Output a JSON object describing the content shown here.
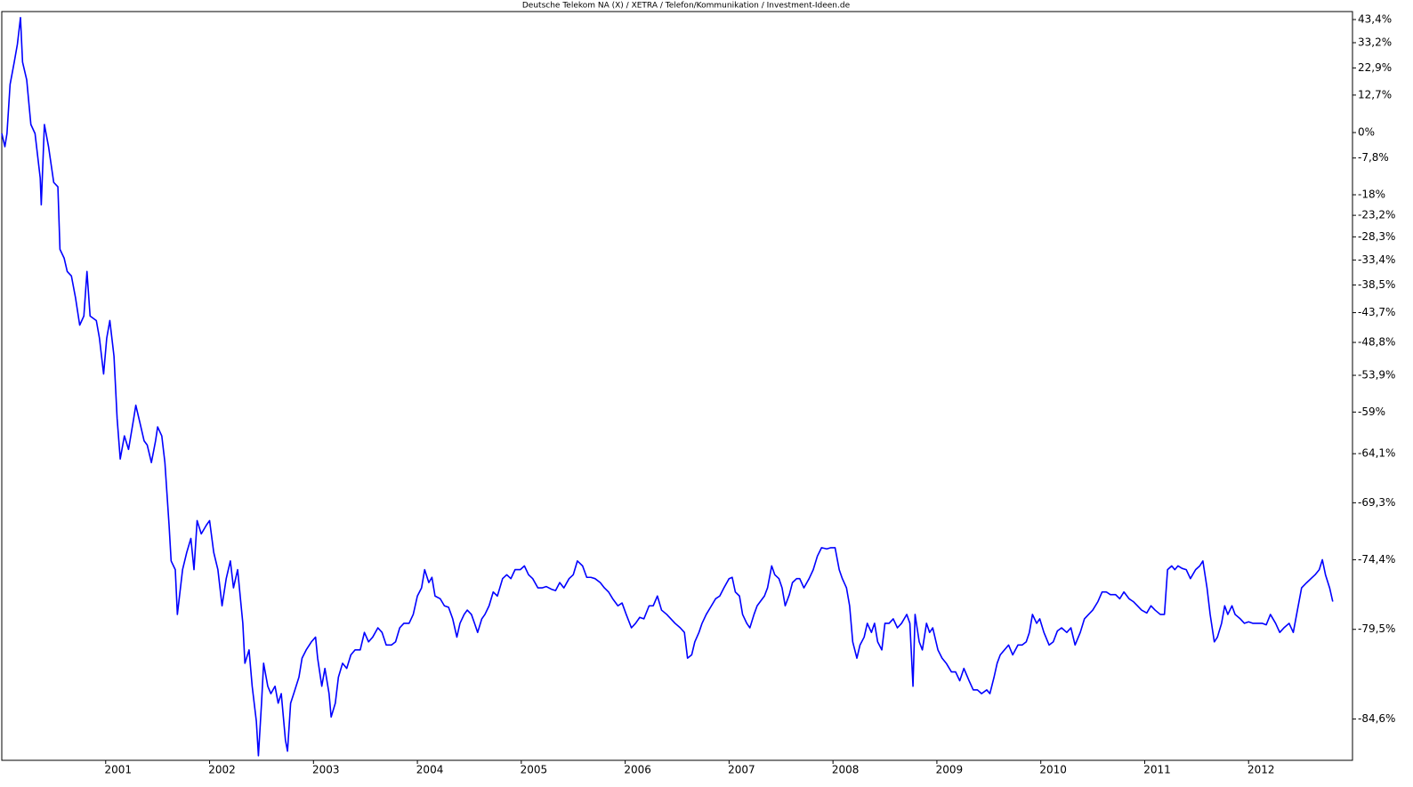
{
  "chart_data": {
    "type": "line",
    "title": "Deutsche Telekom NA (X) / XETRA / Telefon/Kommunikation / Investment-Ideen.de",
    "color": "#0000ff",
    "log_scale": true,
    "grid": false,
    "xlim": [
      2000,
      2013
    ],
    "xticks": [
      2001,
      2002,
      2003,
      2004,
      2005,
      2006,
      2007,
      2008,
      2009,
      2010,
      2011,
      2012
    ],
    "ylim": [
      -86.5,
      47.1
    ],
    "yticks": [
      {
        "value": 43.4,
        "label": "43,4%"
      },
      {
        "value": 33.2,
        "label": "33,2%"
      },
      {
        "value": 22.9,
        "label": "22,9%"
      },
      {
        "value": 12.7,
        "label": "12,7%"
      },
      {
        "value": 0,
        "label": "0%"
      },
      {
        "value": -7.8,
        "label": "-7,8%"
      },
      {
        "value": -18,
        "label": "-18%"
      },
      {
        "value": -23.2,
        "label": "-23,2%"
      },
      {
        "value": -28.3,
        "label": "-28,3%"
      },
      {
        "value": -33.4,
        "label": "-33,4%"
      },
      {
        "value": -38.5,
        "label": "-38,5%"
      },
      {
        "value": -43.7,
        "label": "-43,7%"
      },
      {
        "value": -48.8,
        "label": "-48,8%"
      },
      {
        "value": -53.9,
        "label": "-53,9%"
      },
      {
        "value": -59,
        "label": "-59%"
      },
      {
        "value": -64.1,
        "label": "-64,1%"
      },
      {
        "value": -69.3,
        "label": "-69,3%"
      },
      {
        "value": -74.4,
        "label": "-74,4%"
      },
      {
        "value": -79.5,
        "label": "-79,5%"
      },
      {
        "value": -84.6,
        "label": "-84,6%"
      }
    ],
    "x": [
      2000.0,
      2000.03,
      2000.05,
      2000.08,
      2000.12,
      2000.15,
      2000.18,
      2000.2,
      2000.24,
      2000.28,
      2000.32,
      2000.37,
      2000.38,
      2000.41,
      2000.45,
      2000.5,
      2000.54,
      2000.56,
      2000.6,
      2000.63,
      2000.67,
      2000.71,
      2000.75,
      2000.79,
      2000.82,
      2000.85,
      2000.91,
      2000.94,
      2000.98,
      2001.01,
      2001.04,
      2001.08,
      2001.11,
      2001.14,
      2001.18,
      2001.22,
      2001.27,
      2001.29,
      2001.33,
      2001.37,
      2001.4,
      2001.44,
      2001.48,
      2001.5,
      2001.54,
      2001.57,
      2001.61,
      2001.63,
      2001.67,
      2001.69,
      2001.74,
      2001.78,
      2001.82,
      2001.85,
      2001.88,
      2001.92,
      2001.97,
      2002.0,
      2002.04,
      2002.08,
      2002.12,
      2002.16,
      2002.2,
      2002.23,
      2002.27,
      2002.32,
      2002.34,
      2002.38,
      2002.41,
      2002.45,
      2002.47,
      2002.5,
      2002.52,
      2002.56,
      2002.59,
      2002.63,
      2002.66,
      2002.69,
      2002.73,
      2002.75,
      2002.78,
      2002.81,
      2002.86,
      2002.89,
      2002.93,
      2002.98,
      2003.02,
      2003.04,
      2003.08,
      2003.11,
      2003.15,
      2003.17,
      2003.21,
      2003.24,
      2003.28,
      2003.32,
      2003.36,
      2003.4,
      2003.45,
      2003.49,
      2003.53,
      2003.57,
      2003.62,
      2003.66,
      2003.7,
      2003.75,
      2003.79,
      2003.83,
      2003.87,
      2003.92,
      2003.96,
      2004.0,
      2004.04,
      2004.07,
      2004.11,
      2004.14,
      2004.17,
      2004.22,
      2004.26,
      2004.3,
      2004.34,
      2004.38,
      2004.41,
      2004.45,
      2004.48,
      2004.52,
      2004.55,
      2004.58,
      2004.62,
      2004.65,
      2004.69,
      2004.73,
      2004.77,
      2004.82,
      2004.86,
      2004.9,
      2004.94,
      2004.99,
      2005.03,
      2005.07,
      2005.11,
      2005.16,
      2005.2,
      2005.24,
      2005.29,
      2005.33,
      2005.37,
      2005.41,
      2005.46,
      2005.5,
      2005.54,
      2005.59,
      2005.63,
      2005.67,
      2005.71,
      2005.76,
      2005.8,
      2005.84,
      2005.88,
      2005.93,
      2005.97,
      2006.01,
      2006.06,
      2006.1,
      2006.14,
      2006.18,
      2006.23,
      2006.27,
      2006.31,
      2006.35,
      2006.4,
      2006.44,
      2006.48,
      2006.53,
      2006.57,
      2006.6,
      2006.64,
      2006.67,
      2006.71,
      2006.74,
      2006.78,
      2006.83,
      2006.87,
      2006.91,
      2006.95,
      2007.0,
      2007.03,
      2007.06,
      2007.1,
      2007.13,
      2007.17,
      2007.2,
      2007.24,
      2007.27,
      2007.3,
      2007.34,
      2007.37,
      2007.41,
      2007.44,
      2007.48,
      2007.51,
      2007.54,
      2007.58,
      2007.61,
      2007.65,
      2007.68,
      2007.72,
      2007.77,
      2007.81,
      2007.85,
      2007.89,
      2007.94,
      2007.98,
      2008.02,
      2008.06,
      2008.09,
      2008.13,
      2008.16,
      2008.19,
      2008.23,
      2008.26,
      2008.3,
      2008.33,
      2008.37,
      2008.4,
      2008.43,
      2008.47,
      2008.5,
      2008.54,
      2008.58,
      2008.62,
      2008.66,
      2008.71,
      2008.74,
      2008.77,
      2008.79,
      2008.83,
      2008.86,
      2008.9,
      2008.93,
      2008.96,
      2009.01,
      2009.05,
      2009.09,
      2009.14,
      2009.18,
      2009.22,
      2009.26,
      2009.31,
      2009.35,
      2009.39,
      2009.43,
      2009.48,
      2009.51,
      2009.55,
      2009.58,
      2009.61,
      2009.65,
      2009.69,
      2009.73,
      2009.78,
      2009.82,
      2009.86,
      2009.89,
      2009.92,
      2009.96,
      2009.99,
      2010.03,
      2010.08,
      2010.12,
      2010.16,
      2010.2,
      2010.25,
      2010.29,
      2010.33,
      2010.38,
      2010.42,
      2010.46,
      2010.5,
      2010.55,
      2010.59,
      2010.63,
      2010.67,
      2010.72,
      2010.76,
      2010.8,
      2010.85,
      2010.89,
      2010.93,
      2010.97,
      2011.02,
      2011.06,
      2011.1,
      2011.15,
      2011.19,
      2011.22,
      2011.26,
      2011.29,
      2011.32,
      2011.36,
      2011.4,
      2011.44,
      2011.49,
      2011.53,
      2011.56,
      2011.6,
      2011.63,
      2011.67,
      2011.7,
      2011.74,
      2011.77,
      2011.8,
      2011.84,
      2011.87,
      2011.92,
      2011.96,
      2012.0,
      2012.04,
      2012.09,
      2012.13,
      2012.17,
      2012.21,
      2012.26,
      2012.3,
      2012.34,
      2012.39,
      2012.43,
      2012.47,
      2012.51,
      2012.56,
      2012.6,
      2012.64,
      2012.68,
      2012.71,
      2012.74,
      2012.78,
      2012.81
    ],
    "values": [
      -0.3,
      -4.4,
      -0.3,
      16.6,
      25.2,
      32.5,
      44.3,
      25.2,
      18.3,
      2.6,
      -0.3,
      -13.5,
      -20.6,
      2.6,
      -4.4,
      -14.7,
      -15.9,
      -31.1,
      -33.0,
      -35.8,
      -36.7,
      -41.0,
      -45.9,
      -44.3,
      -35.8,
      -44.3,
      -45.1,
      -48.1,
      -53.7,
      -48.1,
      -45.1,
      -51.0,
      -59.8,
      -64.7,
      -62.0,
      -63.6,
      -59.8,
      -58.1,
      -60.4,
      -62.6,
      -63.1,
      -65.1,
      -62.6,
      -60.9,
      -62.0,
      -65.1,
      -71.4,
      -74.5,
      -75.2,
      -78.5,
      -75.2,
      -73.8,
      -72.6,
      -75.2,
      -71.0,
      -72.2,
      -71.4,
      -71.0,
      -73.8,
      -75.2,
      -77.9,
      -75.9,
      -74.5,
      -76.6,
      -75.2,
      -79.1,
      -81.6,
      -80.8,
      -82.9,
      -84.7,
      -86.3,
      -83.8,
      -81.6,
      -82.9,
      -83.3,
      -82.9,
      -83.8,
      -83.3,
      -85.6,
      -86.1,
      -83.8,
      -83.3,
      -82.4,
      -81.3,
      -80.8,
      -80.3,
      -80.0,
      -81.3,
      -82.9,
      -81.9,
      -83.3,
      -84.5,
      -83.8,
      -82.4,
      -81.6,
      -81.9,
      -81.1,
      -80.8,
      -80.8,
      -79.7,
      -80.3,
      -80.0,
      -79.4,
      -79.7,
      -80.5,
      -80.5,
      -80.3,
      -79.4,
      -79.1,
      -79.1,
      -78.5,
      -77.2,
      -76.6,
      -75.2,
      -76.2,
      -75.8,
      -77.2,
      -77.4,
      -77.9,
      -78.0,
      -78.8,
      -80.0,
      -79.1,
      -78.5,
      -78.2,
      -78.5,
      -79.1,
      -79.7,
      -78.8,
      -78.5,
      -77.9,
      -76.9,
      -77.2,
      -75.9,
      -75.6,
      -75.9,
      -75.2,
      -75.2,
      -74.9,
      -75.6,
      -75.9,
      -76.6,
      -76.6,
      -76.5,
      -76.7,
      -76.8,
      -76.2,
      -76.6,
      -75.9,
      -75.6,
      -74.5,
      -74.9,
      -75.8,
      -75.8,
      -75.9,
      -76.2,
      -76.6,
      -76.9,
      -77.4,
      -77.9,
      -77.7,
      -78.5,
      -79.4,
      -79.1,
      -78.7,
      -78.8,
      -77.9,
      -77.9,
      -77.2,
      -78.2,
      -78.5,
      -78.8,
      -79.1,
      -79.4,
      -79.7,
      -81.3,
      -81.1,
      -80.3,
      -79.7,
      -79.1,
      -78.5,
      -77.9,
      -77.4,
      -77.2,
      -76.6,
      -75.9,
      -75.8,
      -76.9,
      -77.2,
      -78.5,
      -79.1,
      -79.4,
      -78.5,
      -77.9,
      -77.6,
      -77.2,
      -76.6,
      -74.9,
      -75.6,
      -75.9,
      -76.6,
      -77.9,
      -77.1,
      -76.2,
      -75.9,
      -75.9,
      -76.6,
      -75.9,
      -75.2,
      -74.1,
      -73.4,
      -73.5,
      -73.4,
      -73.4,
      -75.2,
      -75.9,
      -76.6,
      -77.9,
      -80.3,
      -81.3,
      -80.5,
      -80.0,
      -79.1,
      -79.7,
      -79.1,
      -80.3,
      -80.8,
      -79.1,
      -79.1,
      -78.8,
      -79.4,
      -79.1,
      -78.5,
      -79.1,
      -82.9,
      -78.5,
      -80.3,
      -80.8,
      -79.1,
      -79.7,
      -79.4,
      -80.8,
      -81.3,
      -81.6,
      -82.1,
      -82.1,
      -82.6,
      -81.9,
      -82.6,
      -83.1,
      -83.1,
      -83.3,
      -83.1,
      -83.3,
      -82.4,
      -81.6,
      -81.1,
      -80.8,
      -80.5,
      -81.1,
      -80.5,
      -80.5,
      -80.3,
      -79.7,
      -78.5,
      -79.1,
      -78.8,
      -79.7,
      -80.5,
      -80.3,
      -79.6,
      -79.4,
      -79.7,
      -79.4,
      -80.5,
      -79.7,
      -78.8,
      -78.5,
      -78.2,
      -77.6,
      -76.9,
      -76.9,
      -77.1,
      -77.1,
      -77.4,
      -76.9,
      -77.4,
      -77.6,
      -77.9,
      -78.2,
      -78.4,
      -77.9,
      -78.2,
      -78.5,
      -78.5,
      -75.2,
      -74.9,
      -75.2,
      -74.9,
      -75.1,
      -75.2,
      -75.9,
      -75.2,
      -74.9,
      -74.5,
      -76.6,
      -78.5,
      -80.3,
      -80.0,
      -79.1,
      -77.9,
      -78.5,
      -77.9,
      -78.5,
      -78.8,
      -79.1,
      -79.0,
      -79.1,
      -79.1,
      -79.1,
      -79.2,
      -78.5,
      -79.1,
      -79.7,
      -79.4,
      -79.1,
      -79.7,
      -78.2,
      -76.6,
      -76.2,
      -75.9,
      -75.6,
      -75.2,
      -74.4,
      -75.6,
      -76.6,
      -77.6
    ]
  }
}
